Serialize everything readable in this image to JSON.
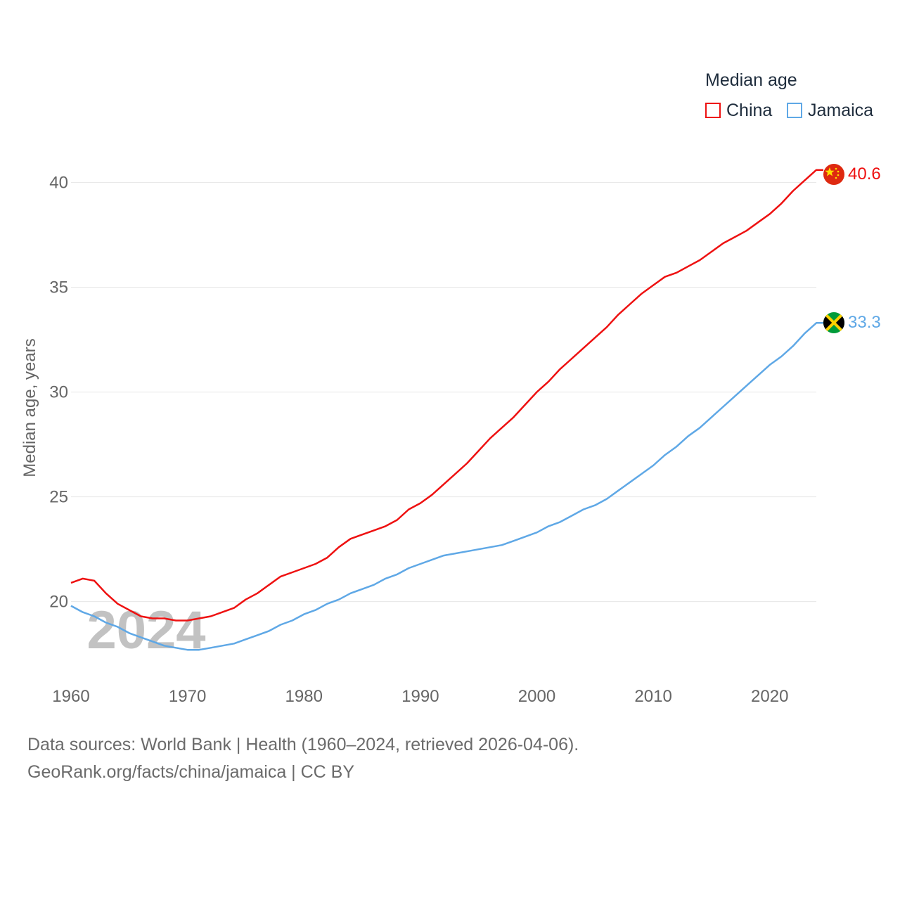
{
  "legend": {
    "title": "Median age",
    "china_label": "China",
    "jamaica_label": "Jamaica"
  },
  "year_watermark": "2024",
  "colors": {
    "china": "#ee1111",
    "jamaica": "#5fa8e6",
    "grid": "#e6e6e6",
    "axis_text": "#666666"
  },
  "footer": {
    "line1": "Data sources: World Bank | Health (1960–2024, retrieved 2026-04-06).",
    "line2": "GeoRank.org/facts/china/jamaica | CC BY"
  },
  "chart_data": {
    "type": "line",
    "title": "Median age",
    "xlabel": "",
    "ylabel": "Median age, years",
    "xlim": [
      1960,
      2024
    ],
    "ylim": [
      16.5,
      42
    ],
    "x_ticks": [
      1960,
      1970,
      1980,
      1990,
      2000,
      2010,
      2020
    ],
    "y_ticks": [
      20,
      25,
      30,
      35,
      40
    ],
    "x": [
      1960,
      1961,
      1962,
      1963,
      1964,
      1965,
      1966,
      1967,
      1968,
      1969,
      1970,
      1971,
      1972,
      1973,
      1974,
      1975,
      1976,
      1977,
      1978,
      1979,
      1980,
      1981,
      1982,
      1983,
      1984,
      1985,
      1986,
      1987,
      1988,
      1989,
      1990,
      1991,
      1992,
      1993,
      1994,
      1995,
      1996,
      1997,
      1998,
      1999,
      2000,
      2001,
      2002,
      2003,
      2004,
      2005,
      2006,
      2007,
      2008,
      2009,
      2010,
      2011,
      2012,
      2013,
      2014,
      2015,
      2016,
      2017,
      2018,
      2019,
      2020,
      2021,
      2022,
      2023,
      2024
    ],
    "series": [
      {
        "name": "China",
        "end_label": "40.6",
        "values": [
          20.9,
          21.1,
          21.0,
          20.4,
          19.9,
          19.6,
          19.3,
          19.2,
          19.2,
          19.1,
          19.1,
          19.2,
          19.3,
          19.5,
          19.7,
          20.1,
          20.4,
          20.8,
          21.2,
          21.4,
          21.6,
          21.8,
          22.1,
          22.6,
          23.0,
          23.2,
          23.4,
          23.6,
          23.9,
          24.4,
          24.7,
          25.1,
          25.6,
          26.1,
          26.6,
          27.2,
          27.8,
          28.3,
          28.8,
          29.4,
          30.0,
          30.5,
          31.1,
          31.6,
          32.1,
          32.6,
          33.1,
          33.7,
          34.2,
          34.7,
          35.1,
          35.5,
          35.7,
          36.0,
          36.3,
          36.7,
          37.1,
          37.4,
          37.7,
          38.1,
          38.5,
          39.0,
          39.6,
          40.1,
          40.6
        ]
      },
      {
        "name": "Jamaica",
        "end_label": "33.3",
        "values": [
          19.8,
          19.5,
          19.3,
          19.0,
          18.8,
          18.5,
          18.3,
          18.1,
          17.9,
          17.8,
          17.7,
          17.7,
          17.8,
          17.9,
          18.0,
          18.2,
          18.4,
          18.6,
          18.9,
          19.1,
          19.4,
          19.6,
          19.9,
          20.1,
          20.4,
          20.6,
          20.8,
          21.1,
          21.3,
          21.6,
          21.8,
          22.0,
          22.2,
          22.3,
          22.4,
          22.5,
          22.6,
          22.7,
          22.9,
          23.1,
          23.3,
          23.6,
          23.8,
          24.1,
          24.4,
          24.6,
          24.9,
          25.3,
          25.7,
          26.1,
          26.5,
          27.0,
          27.4,
          27.9,
          28.3,
          28.8,
          29.3,
          29.8,
          30.3,
          30.8,
          31.3,
          31.7,
          32.2,
          32.8,
          33.3
        ]
      }
    ]
  }
}
